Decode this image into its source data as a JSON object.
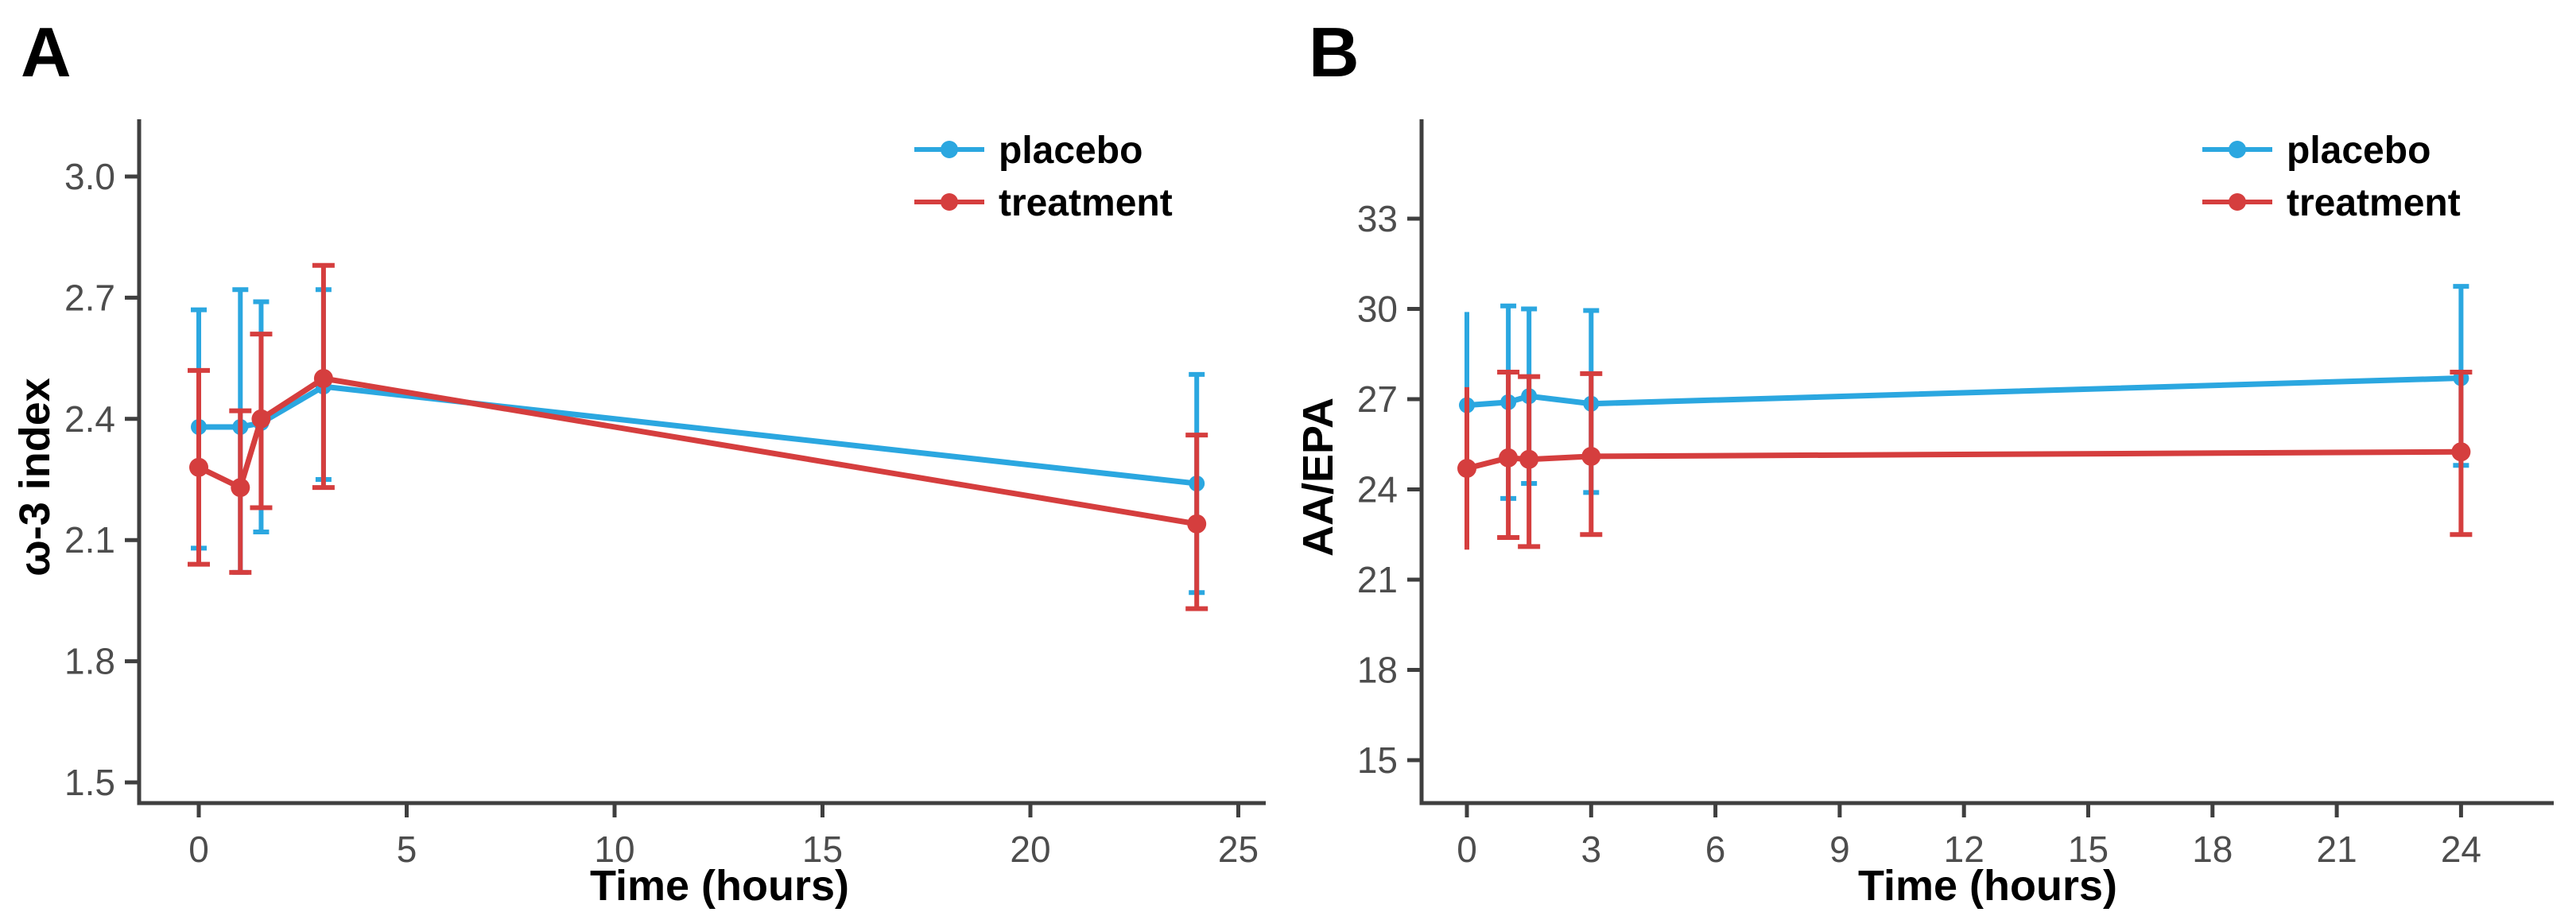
{
  "figure": {
    "background": "#ffffff",
    "colors": {
      "placebo": "#2BA7E0",
      "treatment": "#D53E3E",
      "axis_line": "#3F3F3F",
      "tick_text": "#4D4D4D",
      "title_text": "#000000"
    }
  },
  "chart_data": [
    {
      "type": "line",
      "panel_label": "A",
      "title": "",
      "xlabel": "Time (hours)",
      "ylabel": "ω-3 index",
      "x": [
        0,
        1,
        1.5,
        3,
        24
      ],
      "x_ticks": [
        0,
        5,
        10,
        15,
        20,
        25
      ],
      "x_tick_labels": [
        "0",
        "5",
        "10",
        "15",
        "20",
        "25"
      ],
      "xlim": [
        -1.4,
        25.9
      ],
      "y_ticks": [
        1.5,
        1.8,
        2.1,
        2.4,
        2.7,
        3.0
      ],
      "y_tick_labels": [
        "1.5",
        "1.8",
        "2.1",
        "2.4",
        "2.7",
        "3.0"
      ],
      "ylim": [
        1.45,
        3.14
      ],
      "grid": false,
      "error_bars": true,
      "legend_position": "inside-top-right",
      "series": [
        {
          "name": "placebo",
          "color": "#2BA7E0",
          "y": [
            2.38,
            2.38,
            2.39,
            2.48,
            2.24
          ],
          "err_lo": [
            2.08,
            2.02,
            2.12,
            2.25,
            1.97
          ],
          "err_hi": [
            2.67,
            2.72,
            2.69,
            2.72,
            2.51
          ],
          "caps": [
            true,
            true,
            true,
            true,
            true
          ]
        },
        {
          "name": "treatment",
          "color": "#D53E3E",
          "y": [
            2.28,
            2.23,
            2.4,
            2.5,
            2.14
          ],
          "err_lo": [
            2.04,
            2.02,
            2.18,
            2.23,
            1.93
          ],
          "err_hi": [
            2.52,
            2.42,
            2.61,
            2.78,
            2.36
          ],
          "caps": [
            true,
            true,
            true,
            true,
            true
          ]
        }
      ]
    },
    {
      "type": "line",
      "panel_label": "B",
      "title": "",
      "xlabel": "Time (hours)",
      "ylabel": "AA/EPA",
      "x": [
        0,
        1,
        1.5,
        3,
        24
      ],
      "x_ticks": [
        0,
        3,
        6,
        9,
        12,
        15,
        18,
        21,
        24
      ],
      "x_tick_labels": [
        "0",
        "3",
        "6",
        "9",
        "12",
        "15",
        "18",
        "21",
        "24"
      ],
      "xlim": [
        -1.1,
        26.5
      ],
      "y_ticks": [
        15,
        18,
        21,
        24,
        27,
        30,
        33
      ],
      "y_tick_labels": [
        "15",
        "18",
        "21",
        "24",
        "27",
        "30",
        "33"
      ],
      "ylim": [
        13.6,
        36.3
      ],
      "grid": false,
      "error_bars": true,
      "legend_position": "inside-top-right",
      "series": [
        {
          "name": "placebo",
          "color": "#2BA7E0",
          "y": [
            26.8,
            26.9,
            27.1,
            26.85,
            27.7
          ],
          "err_lo": [
            23.7,
            23.7,
            24.2,
            23.9,
            24.8
          ],
          "err_hi": [
            29.9,
            30.1,
            30.0,
            29.95,
            30.75
          ],
          "caps": [
            false,
            true,
            true,
            true,
            true
          ]
        },
        {
          "name": "treatment",
          "color": "#D53E3E",
          "y": [
            24.7,
            25.05,
            25.0,
            25.1,
            25.25
          ],
          "err_lo": [
            22.0,
            22.4,
            22.1,
            22.5,
            22.5
          ],
          "err_hi": [
            27.4,
            27.9,
            27.75,
            27.85,
            27.9
          ],
          "caps": [
            false,
            true,
            true,
            true,
            true
          ]
        }
      ]
    }
  ]
}
